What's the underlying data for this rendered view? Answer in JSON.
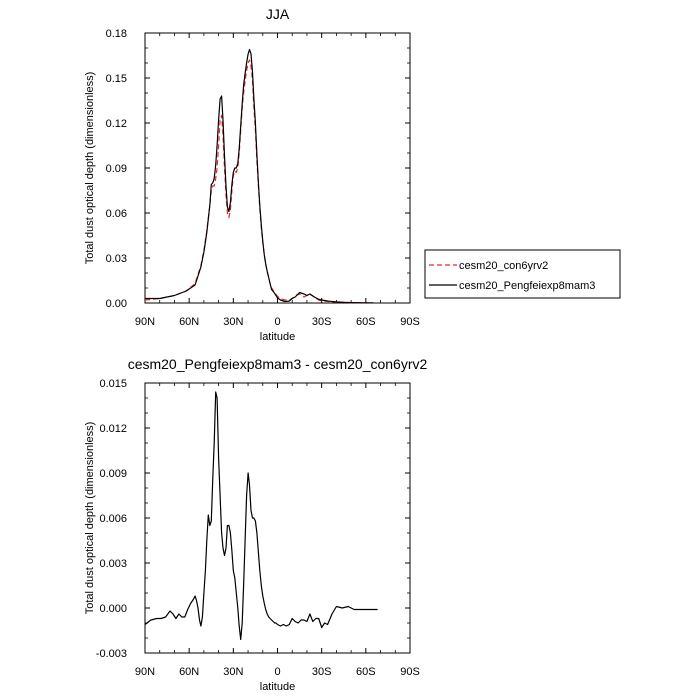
{
  "chart_data": [
    {
      "type": "line",
      "title": "JJA",
      "xlabel": "latitude",
      "ylabel": "Total dust optical depth (dimensionless)",
      "xlim": [
        90,
        -90
      ],
      "ylim": [
        0,
        0.18
      ],
      "x_ticks": [
        90,
        60,
        30,
        0,
        -30,
        -60,
        -90
      ],
      "x_tick_labels": [
        "90N",
        "60N",
        "30N",
        "0",
        "30S",
        "60S",
        "90S"
      ],
      "y_ticks": [
        0,
        0.03,
        0.06,
        0.09,
        0.12,
        0.15,
        0.18
      ],
      "y_tick_labels": [
        "0.00",
        "0.03",
        "0.06",
        "0.09",
        "0.12",
        "0.15",
        "0.18"
      ],
      "grid": false,
      "legend": {
        "placement": "outside-right",
        "entries": [
          {
            "label": "cesm20_con6yrv2",
            "color": "#e8262b",
            "style": "dashed"
          },
          {
            "label": "cesm20_Pengfeiexp8mam3",
            "color": "#000000",
            "style": "solid"
          }
        ]
      },
      "series": [
        {
          "name": "cesm20_con6yrv2",
          "color": "#e8262b",
          "style": "dashed",
          "x": [
            90,
            80,
            70,
            62,
            56,
            52,
            50,
            48,
            46,
            45,
            44,
            43,
            42,
            41,
            40,
            39,
            38,
            37,
            36,
            35,
            34,
            33,
            32,
            31,
            30,
            29,
            28,
            27,
            26,
            25,
            24,
            23,
            22,
            21,
            20,
            19,
            18,
            17,
            16,
            15,
            14,
            13,
            12,
            11,
            10,
            9,
            8,
            7,
            6,
            5,
            4,
            2,
            0,
            -2,
            -5,
            -8,
            -10,
            -12,
            -15,
            -18,
            -20,
            -22,
            -25,
            -28,
            -30,
            -35,
            -40,
            -45,
            -50,
            -55,
            -60,
            -65
          ],
          "y": [
            0.002,
            0.003,
            0.005,
            0.008,
            0.013,
            0.025,
            0.035,
            0.048,
            0.065,
            0.075,
            0.078,
            0.078,
            0.083,
            0.09,
            0.105,
            0.122,
            0.125,
            0.112,
            0.09,
            0.072,
            0.06,
            0.057,
            0.062,
            0.075,
            0.085,
            0.088,
            0.087,
            0.09,
            0.1,
            0.115,
            0.13,
            0.14,
            0.148,
            0.155,
            0.16,
            0.162,
            0.158,
            0.148,
            0.13,
            0.115,
            0.095,
            0.078,
            0.063,
            0.05,
            0.04,
            0.032,
            0.026,
            0.021,
            0.017,
            0.013,
            0.01,
            0.007,
            0.0045,
            0.003,
            0.002,
            0.002,
            0.003,
            0.005,
            0.006,
            0.004,
            0.005,
            0.006,
            0.004,
            0.002,
            0.0015,
            0.001,
            0.0005,
            0.0004,
            0.0003,
            0.0002,
            0.0001,
            0.0001
          ]
        },
        {
          "name": "cesm20_Pengfeiexp8mam3",
          "color": "#000000",
          "style": "solid",
          "x": [
            90,
            80,
            70,
            62,
            56,
            52,
            50,
            48,
            46,
            45,
            44,
            43,
            42,
            41,
            40,
            39,
            38,
            37,
            36,
            35,
            34,
            33,
            32,
            31,
            30,
            29,
            28,
            27,
            26,
            25,
            24,
            23,
            22,
            21,
            20,
            19,
            18,
            17,
            16,
            15,
            14,
            13,
            12,
            11,
            10,
            9,
            8,
            7,
            6,
            5,
            4,
            2,
            0,
            -2,
            -5,
            -8,
            -10,
            -12,
            -15,
            -18,
            -20,
            -22,
            -25,
            -28,
            -30,
            -35,
            -40,
            -45,
            -50,
            -55,
            -60,
            -65
          ],
          "y": [
            0.003,
            0.003,
            0.005,
            0.008,
            0.012,
            0.024,
            0.034,
            0.047,
            0.065,
            0.079,
            0.08,
            0.083,
            0.092,
            0.105,
            0.122,
            0.136,
            0.138,
            0.122,
            0.098,
            0.078,
            0.064,
            0.061,
            0.067,
            0.079,
            0.087,
            0.09,
            0.09,
            0.093,
            0.103,
            0.118,
            0.133,
            0.145,
            0.153,
            0.16,
            0.166,
            0.169,
            0.166,
            0.154,
            0.136,
            0.12,
            0.099,
            0.08,
            0.065,
            0.052,
            0.041,
            0.032,
            0.026,
            0.021,
            0.017,
            0.013,
            0.009,
            0.0065,
            0.0035,
            0.002,
            0.001,
            0.0013,
            0.003,
            0.004,
            0.007,
            0.006,
            0.005,
            0.006,
            0.004,
            0.0025,
            0.002,
            0.0012,
            0.0007,
            0.0004,
            0.0003,
            0.0002,
            0.0001,
            0.0001
          ]
        }
      ]
    },
    {
      "type": "line",
      "title": "cesm20_Pengfeiexp8mam3 - cesm20_con6yrv2",
      "xlabel": "latitude",
      "ylabel": "Total dust optical depth (dimensionless)",
      "xlim": [
        90,
        -90
      ],
      "ylim": [
        -0.003,
        0.015
      ],
      "x_ticks": [
        90,
        60,
        30,
        0,
        -30,
        -60,
        -90
      ],
      "x_tick_labels": [
        "90N",
        "60N",
        "30N",
        "0",
        "30S",
        "60S",
        "90S"
      ],
      "y_ticks": [
        -0.003,
        0,
        0.003,
        0.006,
        0.009,
        0.012,
        0.015
      ],
      "y_tick_labels": [
        "-0.003",
        "0.000",
        "0.003",
        "0.006",
        "0.009",
        "0.012",
        "0.015"
      ],
      "grid": false,
      "series": [
        {
          "color": "#000000",
          "style": "solid",
          "x": [
            90,
            86,
            82,
            79,
            76,
            73,
            71,
            69,
            67,
            65,
            63,
            61,
            59,
            57,
            56,
            55,
            54,
            53,
            52,
            51,
            50,
            49,
            48,
            47,
            46,
            45,
            44,
            43,
            42,
            41,
            40,
            39,
            38,
            37,
            36,
            35,
            34,
            33,
            32,
            31,
            30,
            29,
            28,
            27,
            26,
            25,
            24,
            23,
            22,
            21,
            20,
            19,
            18,
            17,
            16,
            15,
            14,
            13,
            12,
            11,
            10,
            9,
            8,
            7,
            6,
            5,
            4,
            3,
            2,
            1,
            0,
            -2,
            -4,
            -6,
            -8,
            -10,
            -12,
            -14,
            -16,
            -18,
            -20,
            -22,
            -24,
            -26,
            -28,
            -30,
            -32,
            -34,
            -37,
            -40,
            -44,
            -48,
            -52,
            -56,
            -60,
            -64,
            -68
          ],
          "y": [
            -0.0011,
            -0.0008,
            -0.0007,
            -0.0007,
            -0.0006,
            -0.0002,
            -0.0004,
            -0.0007,
            -0.0004,
            -0.0006,
            -0.0006,
            -0.0001,
            0.0003,
            0.0006,
            0.0008,
            0.0005,
            0.0,
            -0.0008,
            -0.0012,
            -0.0006,
            0.001,
            0.0025,
            0.0045,
            0.0062,
            0.0055,
            0.0058,
            0.0085,
            0.011,
            0.0144,
            0.014,
            0.01,
            0.0075,
            0.005,
            0.004,
            0.0035,
            0.004,
            0.0055,
            0.0055,
            0.005,
            0.0038,
            0.0025,
            0.002,
            0.001,
            0.0,
            -0.0012,
            -0.0021,
            -0.001,
            0.0015,
            0.0045,
            0.0075,
            0.009,
            0.0082,
            0.0065,
            0.006,
            0.006,
            0.0058,
            0.005,
            0.0037,
            0.0025,
            0.0015,
            0.0008,
            0.0003,
            -0.0001,
            -0.0004,
            -0.0006,
            -0.0007,
            -0.0008,
            -0.0009,
            -0.001,
            -0.001,
            -0.0011,
            -0.0012,
            -0.0011,
            -0.0012,
            -0.0011,
            -0.0007,
            -0.0009,
            -0.001,
            -0.0008,
            -0.0008,
            -0.0009,
            -0.0004,
            -0.0009,
            -0.0007,
            -0.0007,
            -0.0013,
            -0.001,
            -0.0011,
            -0.0004,
            0.0001,
            0.0,
            0.0001,
            -0.0001,
            -0.0001,
            -0.0001,
            -0.0001,
            -0.0001
          ]
        }
      ]
    }
  ]
}
